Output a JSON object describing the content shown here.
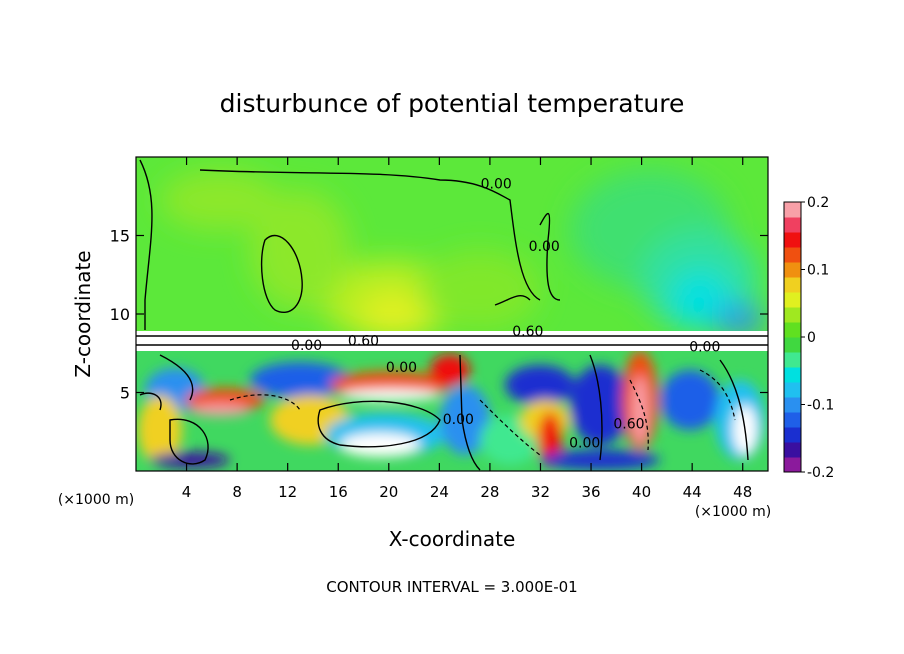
{
  "chart_data": {
    "type": "heatmap",
    "title": "disturbunce of potential temperature",
    "xlabel": "X-coordinate",
    "ylabel": "Z-coordinate",
    "x_unit_label": "(×1000 m)",
    "x_unit_label_right": "(×1000 m)",
    "xlim": [
      0,
      50
    ],
    "ylim": [
      0,
      20
    ],
    "x_ticks": [
      4,
      8,
      12,
      16,
      20,
      24,
      28,
      32,
      36,
      40,
      44,
      48
    ],
    "y_ticks": [
      5,
      10,
      15
    ],
    "colorbar": {
      "min": -0.2,
      "max": 0.2,
      "tick_labels": [
        "0.2",
        "0.1",
        "0",
        "-0.1",
        "-0.2"
      ],
      "tick_values": [
        0.2,
        0.1,
        0,
        -0.1,
        -0.2
      ],
      "colors": [
        "#8b1a9c",
        "#3a0fa0",
        "#1a2fd0",
        "#1f5fe8",
        "#2a90f0",
        "#20c0f0",
        "#00e0e0",
        "#40e890",
        "#40d840",
        "#60e020",
        "#a0e820",
        "#e0f020",
        "#f0d020",
        "#f09010",
        "#f05010",
        "#f01010",
        "#f04060",
        "#f8a0a8"
      ]
    },
    "contour_labels": [
      {
        "text": "0.00",
        "x": 28.5,
        "z": 18.0
      },
      {
        "text": "0.00",
        "x": 32.3,
        "z": 14.0
      },
      {
        "text": "0.60",
        "x": 18.0,
        "z": 8.0
      },
      {
        "text": "0.60",
        "x": 31.0,
        "z": 8.6
      },
      {
        "text": "0.00",
        "x": 13.5,
        "z": 7.7
      },
      {
        "text": "0.00",
        "x": 21.0,
        "z": 6.3
      },
      {
        "text": "0.00",
        "x": 25.5,
        "z": 3.0
      },
      {
        "text": "0.00",
        "x": 35.5,
        "z": 1.5
      },
      {
        "text": "0.60",
        "x": 39.0,
        "z": 2.7
      },
      {
        "text": "0.00",
        "x": 45.0,
        "z": 7.6
      }
    ],
    "note": "CONTOUR INTERVAL = 3.000E-01"
  }
}
